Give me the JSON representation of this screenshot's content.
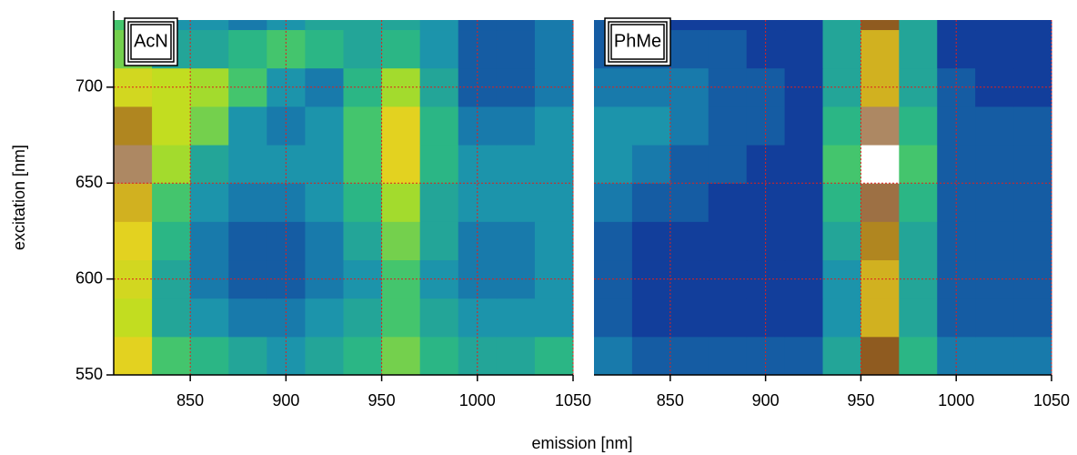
{
  "axes": {
    "xlabel": "emission [nm]",
    "ylabel": "excitation [nm]"
  },
  "chart_data": [
    {
      "type": "heatmap",
      "annotation": "AcN",
      "xbins": [
        810,
        830,
        850,
        870,
        890,
        910,
        930,
        950,
        970,
        990,
        1010,
        1030,
        1050
      ],
      "ybins": [
        550,
        570,
        590,
        610,
        630,
        650,
        670,
        690,
        710,
        730,
        735
      ],
      "xlim": [
        810,
        1050
      ],
      "ylim": [
        550,
        735
      ],
      "xticks": [
        850,
        900,
        950,
        1000,
        1050
      ],
      "yticks": [
        550,
        600,
        650,
        700
      ],
      "show_ytick_labels": true,
      "grid": true,
      "grid_color": "#e0201c",
      "zlim": [
        0,
        1
      ],
      "colormap": [
        "#0a1550",
        "#123a9a",
        "#1a8fb0",
        "#2fc07a",
        "#b8e020",
        "#e8d020",
        "#8a5520",
        "#ffffff"
      ],
      "z": [
        [
          0.7,
          0.45,
          0.4,
          0.35,
          0.3,
          0.35,
          0.4,
          0.5,
          0.4,
          0.35,
          0.35,
          0.4
        ],
        [
          0.6,
          0.35,
          0.3,
          0.25,
          0.25,
          0.3,
          0.35,
          0.45,
          0.35,
          0.3,
          0.3,
          0.3
        ],
        [
          0.65,
          0.35,
          0.25,
          0.2,
          0.2,
          0.25,
          0.3,
          0.45,
          0.3,
          0.25,
          0.25,
          0.3
        ],
        [
          0.7,
          0.4,
          0.25,
          0.2,
          0.2,
          0.25,
          0.35,
          0.5,
          0.35,
          0.25,
          0.25,
          0.3
        ],
        [
          0.75,
          0.45,
          0.3,
          0.25,
          0.25,
          0.3,
          0.4,
          0.55,
          0.35,
          0.3,
          0.3,
          0.3
        ],
        [
          0.9,
          0.55,
          0.35,
          0.3,
          0.3,
          0.3,
          0.45,
          0.7,
          0.4,
          0.3,
          0.3,
          0.3
        ],
        [
          0.8,
          0.6,
          0.5,
          0.3,
          0.25,
          0.3,
          0.45,
          0.7,
          0.4,
          0.25,
          0.25,
          0.3
        ],
        [
          0.65,
          0.6,
          0.55,
          0.45,
          0.3,
          0.25,
          0.4,
          0.55,
          0.35,
          0.2,
          0.2,
          0.25
        ],
        [
          0.5,
          0.35,
          0.35,
          0.4,
          0.45,
          0.4,
          0.35,
          0.4,
          0.3,
          0.2,
          0.2,
          0.25
        ],
        [
          0.45,
          0.3,
          0.3,
          0.25,
          0.3,
          0.35,
          0.35,
          0.35,
          0.3,
          0.2,
          0.2,
          0.25
        ]
      ]
    },
    {
      "type": "heatmap",
      "annotation": "PhMe",
      "xbins": [
        810,
        830,
        850,
        870,
        890,
        910,
        930,
        950,
        970,
        990,
        1010,
        1030,
        1050
      ],
      "ybins": [
        550,
        570,
        590,
        610,
        630,
        650,
        670,
        690,
        710,
        730,
        735
      ],
      "xlim": [
        810,
        1050
      ],
      "ylim": [
        550,
        735
      ],
      "xticks": [
        850,
        900,
        950,
        1000,
        1050
      ],
      "yticks": [
        550,
        600,
        650,
        700
      ],
      "show_ytick_labels": false,
      "grid": true,
      "grid_color": "#e0201c",
      "zlim": [
        0,
        1
      ],
      "colormap": [
        "#0a1550",
        "#123a9a",
        "#1a8fb0",
        "#2fc07a",
        "#b8e020",
        "#e8d020",
        "#8a5520",
        "#ffffff"
      ],
      "z": [
        [
          0.25,
          0.2,
          0.2,
          0.2,
          0.2,
          0.2,
          0.35,
          0.85,
          0.4,
          0.25,
          0.25,
          0.25
        ],
        [
          0.2,
          0.15,
          0.15,
          0.15,
          0.15,
          0.15,
          0.3,
          0.75,
          0.35,
          0.2,
          0.2,
          0.2
        ],
        [
          0.2,
          0.15,
          0.15,
          0.15,
          0.15,
          0.15,
          0.3,
          0.75,
          0.35,
          0.2,
          0.2,
          0.2
        ],
        [
          0.2,
          0.15,
          0.15,
          0.15,
          0.15,
          0.15,
          0.35,
          0.8,
          0.35,
          0.2,
          0.2,
          0.2
        ],
        [
          0.25,
          0.2,
          0.2,
          0.15,
          0.15,
          0.15,
          0.4,
          0.88,
          0.4,
          0.2,
          0.2,
          0.2
        ],
        [
          0.3,
          0.25,
          0.2,
          0.2,
          0.15,
          0.15,
          0.45,
          1.0,
          0.45,
          0.2,
          0.2,
          0.2
        ],
        [
          0.3,
          0.3,
          0.25,
          0.2,
          0.2,
          0.15,
          0.4,
          0.9,
          0.4,
          0.2,
          0.2,
          0.2
        ],
        [
          0.25,
          0.25,
          0.25,
          0.2,
          0.2,
          0.15,
          0.35,
          0.75,
          0.35,
          0.2,
          0.15,
          0.15
        ],
        [
          0.2,
          0.2,
          0.2,
          0.2,
          0.15,
          0.15,
          0.35,
          0.75,
          0.35,
          0.15,
          0.15,
          0.15
        ],
        [
          0.2,
          0.15,
          0.15,
          0.15,
          0.15,
          0.15,
          0.35,
          0.85,
          0.35,
          0.15,
          0.15,
          0.15
        ]
      ]
    }
  ]
}
